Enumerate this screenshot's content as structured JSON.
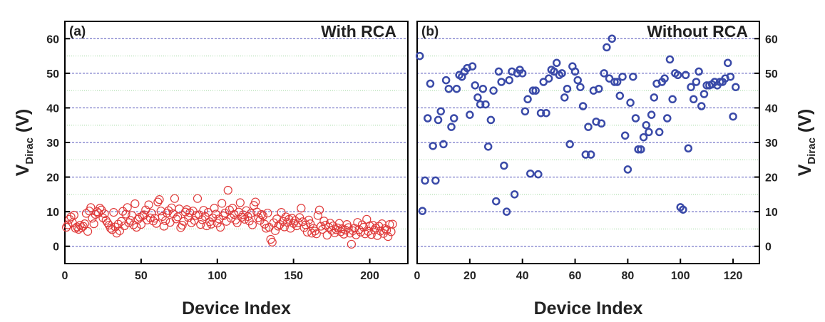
{
  "chart_data": [
    {
      "type": "scatter",
      "panel": "(a)",
      "title": "With RCA",
      "xlabel": "Device Index",
      "ylabel": {
        "main": "V",
        "sub": "Dirac",
        "rest": " (V)"
      },
      "yaxis_side": "left",
      "xlim": [
        0,
        225
      ],
      "ylim": [
        -5,
        65
      ],
      "xticks": [
        0,
        50,
        100,
        150,
        200
      ],
      "yticks": [
        0,
        10,
        20,
        30,
        40,
        50,
        60
      ],
      "yminorticks": [
        5,
        15,
        25,
        35,
        45,
        55
      ],
      "grid": true,
      "series": [
        {
          "name": "With RCA",
          "color": "#e03a3a",
          "x": [
            1,
            2,
            3,
            4,
            5,
            6,
            7,
            8,
            9,
            10,
            11,
            12,
            13,
            14,
            15,
            16,
            17,
            18,
            19,
            20,
            21,
            22,
            23,
            24,
            25,
            26,
            27,
            28,
            29,
            30,
            31,
            32,
            33,
            34,
            35,
            36,
            37,
            38,
            39,
            40,
            41,
            42,
            43,
            44,
            45,
            46,
            47,
            48,
            49,
            50,
            51,
            52,
            53,
            54,
            55,
            56,
            57,
            58,
            59,
            60,
            61,
            62,
            63,
            64,
            65,
            66,
            67,
            68,
            69,
            70,
            71,
            72,
            73,
            74,
            75,
            76,
            77,
            78,
            79,
            80,
            81,
            82,
            83,
            84,
            85,
            86,
            87,
            88,
            89,
            90,
            91,
            92,
            93,
            94,
            95,
            96,
            97,
            98,
            99,
            100,
            101,
            102,
            103,
            104,
            105,
            106,
            107,
            108,
            109,
            110,
            111,
            112,
            113,
            114,
            115,
            116,
            117,
            118,
            119,
            120,
            121,
            122,
            123,
            124,
            125,
            126,
            127,
            128,
            129,
            130,
            131,
            132,
            133,
            134,
            135,
            136,
            137,
            138,
            139,
            140,
            141,
            142,
            143,
            144,
            145,
            146,
            147,
            148,
            149,
            150,
            151,
            152,
            153,
            154,
            155,
            156,
            157,
            158,
            159,
            160,
            161,
            162,
            163,
            164,
            165,
            166,
            167,
            168,
            169,
            170,
            171,
            172,
            173,
            174,
            175,
            176,
            177,
            178,
            179,
            180,
            181,
            182,
            183,
            184,
            185,
            186,
            187,
            188,
            189,
            190,
            191,
            192,
            193,
            194,
            195,
            196,
            197,
            198,
            199,
            200,
            201,
            202,
            203,
            204,
            205,
            206,
            207,
            208,
            209,
            210,
            211,
            212,
            213,
            214,
            215
          ],
          "values": [
            5.5,
            6.2,
            7.8,
            8.5,
            6.8,
            9,
            5.2,
            5.6,
            4.9,
            6.1,
            5.4,
            5.8,
            6.5,
            9.5,
            4.3,
            10.2,
            11.2,
            8.1,
            6.5,
            9.2,
            10,
            9.6,
            11,
            10.5,
            8.2,
            9.4,
            7.5,
            6.8,
            6.1,
            5.2,
            4.8,
            9.8,
            5.6,
            3.8,
            6.4,
            4.5,
            7.2,
            10.1,
            5.9,
            9.3,
            11.2,
            6.8,
            7.5,
            8.9,
            6.2,
            12.3,
            5.5,
            7.8,
            8.4,
            6.3,
            8.8,
            9.1,
            10.5,
            7.6,
            12,
            8.2,
            9.5,
            7.3,
            8.1,
            6.6,
            12.8,
            13.5,
            10.2,
            8.6,
            5.8,
            7.4,
            9.6,
            10.3,
            6.9,
            11.1,
            9.4,
            13.8,
            7.9,
            8.5,
            10.8,
            5.4,
            6.1,
            7.2,
            9.9,
            10.6,
            8.3,
            9.7,
            6.8,
            10.2,
            7.5,
            8.9,
            13.8,
            9.1,
            6.3,
            7.7,
            10.4,
            8.6,
            5.9,
            9.8,
            7.1,
            6.4,
            8.2,
            11,
            9.3,
            6.7,
            7.9,
            5.5,
            12.4,
            8.8,
            9.6,
            7.2,
            16.2,
            10.5,
            8.1,
            11,
            9.2,
            7.6,
            6.8,
            9.9,
            12.6,
            8.4,
            9.1,
            7.8,
            10.3,
            8.6,
            7.3,
            9.5,
            6.2,
            11.8,
            12.8,
            9.9,
            8.3,
            7.5,
            9.2,
            8.8,
            6.4,
            5.2,
            9.6,
            5.5,
            2,
            1.2,
            6.8,
            4.5,
            7.9,
            5.8,
            6.3,
            9.8,
            7.2,
            5.6,
            8.5,
            6.9,
            7.8,
            5.2,
            8.1,
            6.6,
            7.4,
            5.9,
            6.8,
            8.3,
            11,
            7.1,
            5.4,
            6.2,
            4.1,
            7.6,
            6.5,
            3.8,
            5.2,
            4.4,
            3.6,
            8.9,
            10.5,
            5.8,
            4.9,
            7.3,
            6.1,
            3.2,
            5.5,
            6.7,
            4.6,
            5.9,
            3.9,
            4.8,
            5.3,
            6.6,
            4.2,
            5.1,
            3.5,
            4.7,
            6.3,
            5.4,
            3.8,
            0.6,
            4.5,
            5.2,
            3.3,
            6.9,
            4.8,
            4.1,
            6.2,
            5.5,
            3.6,
            7.8,
            4.3,
            5.9,
            3.4,
            6.1,
            4.7,
            5.3,
            3.1,
            5.8,
            4.4,
            6.5,
            3.7,
            5.1,
            4.6,
            2.8,
            6.3,
            4.2,
            6.4
          ]
        }
      ]
    },
    {
      "type": "scatter",
      "panel": "(b)",
      "title": "Without RCA",
      "xlabel": "Device Index",
      "ylabel": {
        "main": "V",
        "sub": "Dirac",
        "rest": " (V)"
      },
      "yaxis_side": "right",
      "xlim": [
        0,
        130
      ],
      "ylim": [
        -5,
        65
      ],
      "xticks": [
        0,
        20,
        40,
        60,
        80,
        100,
        120
      ],
      "yticks": [
        0,
        10,
        20,
        30,
        40,
        50,
        60
      ],
      "yminorticks": [
        5,
        15,
        25,
        35,
        45,
        55
      ],
      "grid": true,
      "series": [
        {
          "name": "Without RCA",
          "color": "#3a4aa8",
          "x": [
            1,
            2,
            3,
            4,
            5,
            6,
            7,
            8,
            9,
            10,
            11,
            12,
            13,
            14,
            15,
            16,
            17,
            18,
            19,
            20,
            21,
            22,
            23,
            24,
            25,
            26,
            27,
            28,
            29,
            30,
            31,
            32,
            33,
            34,
            35,
            36,
            37,
            38,
            39,
            40,
            41,
            42,
            43,
            44,
            45,
            46,
            47,
            48,
            49,
            50,
            51,
            52,
            53,
            54,
            55,
            56,
            57,
            58,
            59,
            60,
            61,
            62,
            63,
            64,
            65,
            66,
            67,
            68,
            69,
            70,
            71,
            72,
            73,
            74,
            75,
            76,
            77,
            78,
            79,
            80,
            81,
            82,
            83,
            84,
            85,
            86,
            87,
            88,
            89,
            90,
            91,
            92,
            93,
            94,
            95,
            96,
            97,
            98,
            99,
            100,
            101,
            102,
            103,
            104,
            105,
            106,
            107,
            108,
            109,
            110,
            111,
            112,
            113,
            114,
            115,
            116,
            117,
            118,
            119,
            120,
            121
          ],
          "values": [
            55,
            10.2,
            19,
            37,
            47,
            29,
            19,
            36.5,
            39,
            29.5,
            48,
            45.5,
            34.5,
            37,
            45.5,
            49.5,
            49,
            50.5,
            51.5,
            38,
            52,
            46.5,
            43,
            41,
            45.5,
            41,
            28.8,
            36.5,
            45,
            13,
            50.5,
            47.5,
            23.3,
            10,
            48,
            50.5,
            15,
            50,
            51,
            50,
            39,
            42.5,
            21,
            45,
            45,
            20.8,
            38.5,
            47.5,
            38.5,
            48.5,
            51,
            50.5,
            53,
            49.5,
            50,
            43,
            45.5,
            29.5,
            52,
            50.5,
            48,
            46,
            40.5,
            26.5,
            34.5,
            26.5,
            45,
            36,
            45.5,
            35.5,
            50,
            57.5,
            48.5,
            60,
            47.5,
            47.5,
            43.5,
            49,
            32,
            22.2,
            41.5,
            49,
            37,
            28,
            28,
            31.5,
            35,
            33,
            38,
            43,
            47,
            33,
            47.5,
            48.5,
            37,
            54,
            42.5,
            50,
            49.5,
            11.3,
            10.6,
            49.5,
            28.3,
            46,
            42.5,
            47.5,
            50.5,
            40.5,
            44,
            46.5,
            46.5,
            46.8,
            47.5,
            46.5,
            47.5,
            47.5,
            48.5,
            53,
            49,
            37.5,
            46
          ]
        }
      ]
    }
  ]
}
